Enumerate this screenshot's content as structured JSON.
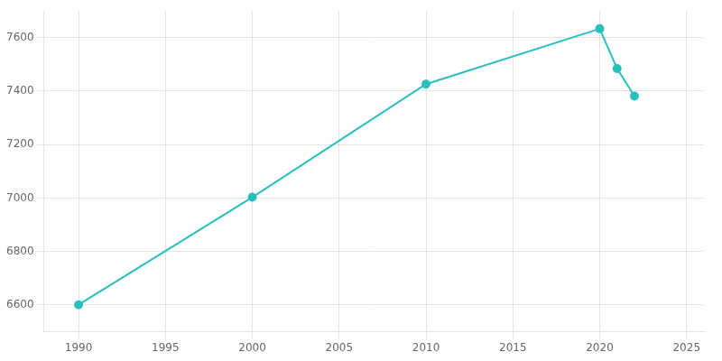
{
  "chart_data": {
    "type": "line",
    "x": [
      1990,
      2000,
      2010,
      2020,
      2021,
      2022
    ],
    "values": [
      6601,
      7003,
      7426,
      7633,
      7484,
      7381
    ],
    "color": "#2abfbf",
    "marker": "circle",
    "xlim": [
      1988,
      2026
    ],
    "xticks": [
      1990,
      1995,
      2000,
      2005,
      2010,
      2015,
      2020,
      2025
    ],
    "ylim": [
      6500,
      7700
    ],
    "yticks": [
      6600,
      6800,
      7000,
      7200,
      7400,
      7600
    ],
    "grid": true
  }
}
